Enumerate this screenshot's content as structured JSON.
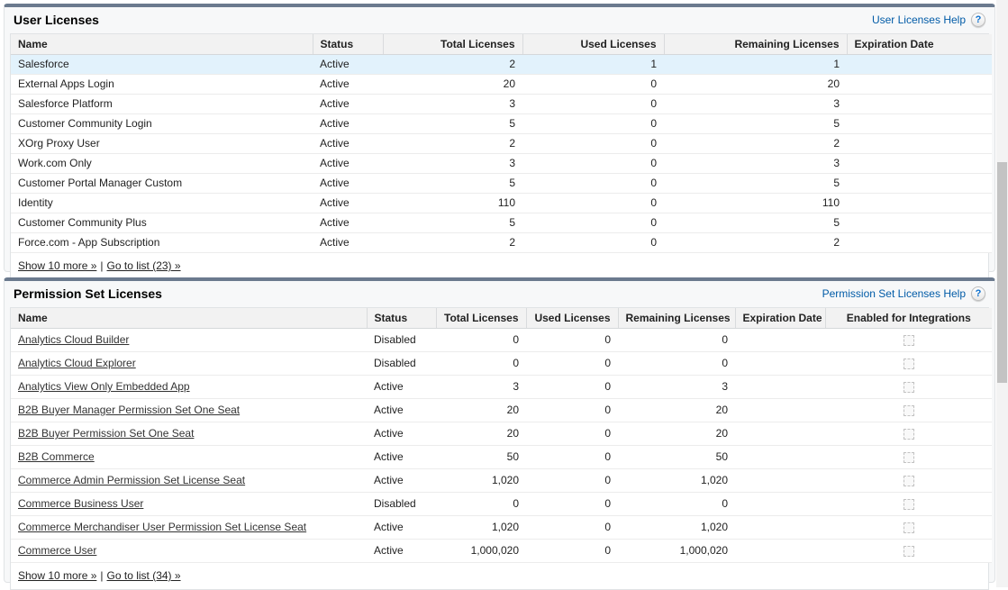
{
  "icons": {
    "help_glyph": "?"
  },
  "colors": {
    "panel_top_bar": "#6b7a8e",
    "help_link": "#015ba7",
    "row_highlight": "#e2f2fc",
    "panel_background": "#f7f8f9"
  },
  "user_licenses": {
    "title": "User Licenses",
    "help_link": "User Licenses Help",
    "columns": [
      "Name",
      "Status",
      "Total Licenses",
      "Used Licenses",
      "Remaining Licenses",
      "Expiration Date"
    ],
    "rows": [
      {
        "name": "Salesforce",
        "status": "Active",
        "total": "2",
        "used": "1",
        "remaining": "1",
        "expiration": "",
        "highlighted": true
      },
      {
        "name": "External Apps Login",
        "status": "Active",
        "total": "20",
        "used": "0",
        "remaining": "20",
        "expiration": ""
      },
      {
        "name": "Salesforce Platform",
        "status": "Active",
        "total": "3",
        "used": "0",
        "remaining": "3",
        "expiration": ""
      },
      {
        "name": "Customer Community Login",
        "status": "Active",
        "total": "5",
        "used": "0",
        "remaining": "5",
        "expiration": ""
      },
      {
        "name": "XOrg Proxy User",
        "status": "Active",
        "total": "2",
        "used": "0",
        "remaining": "2",
        "expiration": ""
      },
      {
        "name": "Work.com Only",
        "status": "Active",
        "total": "3",
        "used": "0",
        "remaining": "3",
        "expiration": ""
      },
      {
        "name": "Customer Portal Manager Custom",
        "status": "Active",
        "total": "5",
        "used": "0",
        "remaining": "5",
        "expiration": ""
      },
      {
        "name": "Identity",
        "status": "Active",
        "total": "110",
        "used": "0",
        "remaining": "110",
        "expiration": ""
      },
      {
        "name": "Customer Community Plus",
        "status": "Active",
        "total": "5",
        "used": "0",
        "remaining": "5",
        "expiration": ""
      },
      {
        "name": "Force.com - App Subscription",
        "status": "Active",
        "total": "2",
        "used": "0",
        "remaining": "2",
        "expiration": ""
      }
    ],
    "footer": {
      "show_more": "Show 10 more »",
      "separator": "|",
      "go_to_list": "Go to list (23) »"
    }
  },
  "permission_set_licenses": {
    "title": "Permission Set Licenses",
    "help_link": "Permission Set Licenses Help",
    "columns": [
      "Name",
      "Status",
      "Total Licenses",
      "Used Licenses",
      "Remaining Licenses",
      "Expiration Date",
      "Enabled for Integrations"
    ],
    "rows": [
      {
        "name": "Analytics Cloud Builder",
        "status": "Disabled",
        "total": "0",
        "used": "0",
        "remaining": "0",
        "expiration": "",
        "enabled_for_integrations": false
      },
      {
        "name": "Analytics Cloud Explorer",
        "status": "Disabled",
        "total": "0",
        "used": "0",
        "remaining": "0",
        "expiration": "",
        "enabled_for_integrations": false
      },
      {
        "name": "Analytics View Only Embedded App",
        "status": "Active",
        "total": "3",
        "used": "0",
        "remaining": "3",
        "expiration": "",
        "enabled_for_integrations": false
      },
      {
        "name": "B2B Buyer Manager Permission Set One Seat",
        "status": "Active",
        "total": "20",
        "used": "0",
        "remaining": "20",
        "expiration": "",
        "enabled_for_integrations": false
      },
      {
        "name": "B2B Buyer Permission Set One Seat",
        "status": "Active",
        "total": "20",
        "used": "0",
        "remaining": "20",
        "expiration": "",
        "enabled_for_integrations": false
      },
      {
        "name": "B2B Commerce",
        "status": "Active",
        "total": "50",
        "used": "0",
        "remaining": "50",
        "expiration": "",
        "enabled_for_integrations": false
      },
      {
        "name": "Commerce Admin Permission Set License Seat",
        "status": "Active",
        "total": "1,020",
        "used": "0",
        "remaining": "1,020",
        "expiration": "",
        "enabled_for_integrations": false
      },
      {
        "name": "Commerce Business User",
        "status": "Disabled",
        "total": "0",
        "used": "0",
        "remaining": "0",
        "expiration": "",
        "enabled_for_integrations": false
      },
      {
        "name": "Commerce Merchandiser User Permission Set License Seat",
        "status": "Active",
        "total": "1,020",
        "used": "0",
        "remaining": "1,020",
        "expiration": "",
        "enabled_for_integrations": false
      },
      {
        "name": "Commerce User",
        "status": "Active",
        "total": "1,000,020",
        "used": "0",
        "remaining": "1,000,020",
        "expiration": "",
        "enabled_for_integrations": false
      }
    ],
    "footer": {
      "show_more": "Show 10 more »",
      "separator": "|",
      "go_to_list": "Go to list (34) »"
    }
  }
}
